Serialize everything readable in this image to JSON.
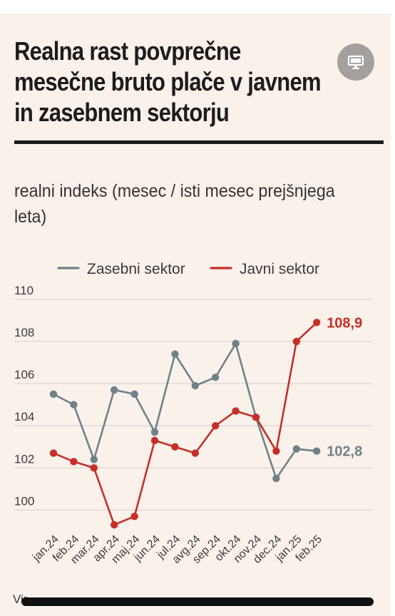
{
  "header": {
    "title_lines": [
      "Realna rast povprečne",
      "mesečne bruto plače v javnem",
      "in zasebnem sektorju"
    ],
    "subtitle": "realni indeks (mesec / isti mesec prejšnjega leta)",
    "cast_icon": "screen-cast-icon"
  },
  "footer": {
    "source_fragment": "Vir"
  },
  "colors": {
    "zasebni": "#6f8288",
    "javni": "#c62f27",
    "grid": "#cfcfcf",
    "text": "#333333"
  },
  "chart_data": {
    "type": "line",
    "categories": [
      "jan.24",
      "feb.24",
      "mar.24",
      "apr.24",
      "maj.24",
      "jun.24",
      "jul.24",
      "avg.24",
      "sep.24",
      "okt.24",
      "nov.24",
      "dec.24",
      "jan.25",
      "feb.25"
    ],
    "series": [
      {
        "name": "Zasebni sektor",
        "values": [
          105.5,
          105.0,
          102.4,
          105.7,
          105.5,
          103.7,
          107.4,
          105.9,
          106.3,
          107.9,
          104.4,
          101.5,
          102.9,
          102.8
        ],
        "end_label": "102,8"
      },
      {
        "name": "Javni sektor",
        "values": [
          102.7,
          102.3,
          102.0,
          99.3,
          99.7,
          103.3,
          103.0,
          102.7,
          104.0,
          104.7,
          104.4,
          102.8,
          108.0,
          108.9
        ],
        "end_label": "108,9"
      }
    ],
    "y_ticks": [
      "110",
      "108",
      "106",
      "104",
      "102",
      "100"
    ],
    "ylim": [
      99,
      110.5
    ],
    "grid": true,
    "legend_position": "top"
  }
}
